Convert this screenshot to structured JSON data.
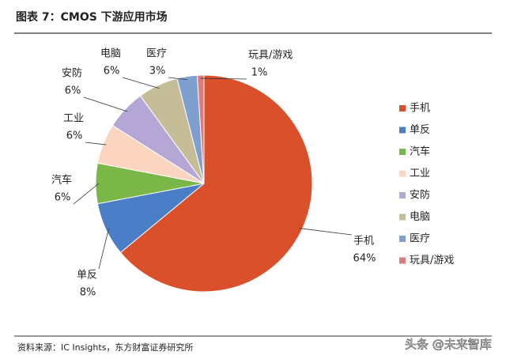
{
  "chart_data": {
    "type": "pie",
    "title": "图表 7：CMOS 下游应用市场",
    "categories": [
      "手机",
      "单反",
      "汽车",
      "工业",
      "安防",
      "电脑",
      "医疗",
      "玩具/游戏"
    ],
    "values": [
      64,
      8,
      6,
      6,
      6,
      6,
      3,
      1
    ],
    "value_labels": [
      "64%",
      "8%",
      "6%",
      "6%",
      "6%",
      "6%",
      "3%",
      "1%"
    ],
    "colors": [
      "#d9502b",
      "#4a7fc7",
      "#7ab648",
      "#fbd5bf",
      "#b4a7d6",
      "#c4bd97",
      "#7f9fd0",
      "#e07b7b"
    ],
    "legend": "right",
    "source": "资料来源：IC Insights，东方财富证券研究所",
    "watermark": "头条 @未来智库"
  }
}
